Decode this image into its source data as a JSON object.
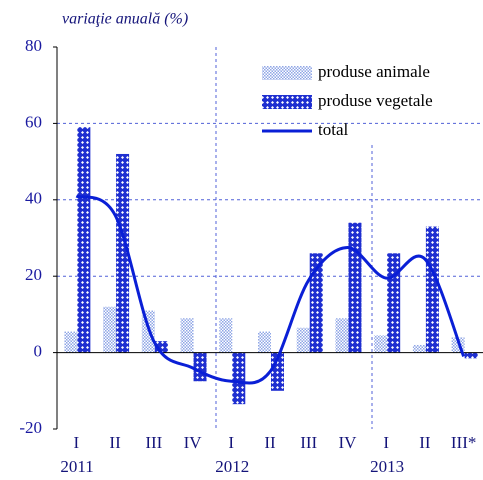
{
  "chart_data": {
    "type": "bar_line",
    "y_axis_label": "variaţie anuală (%)",
    "categories": [
      "I",
      "II",
      "III",
      "IV",
      "I",
      "II",
      "III",
      "IV",
      "I",
      "II",
      "III*"
    ],
    "year_labels": [
      "2011",
      null,
      null,
      null,
      "2012",
      null,
      null,
      null,
      "2013",
      null,
      null
    ],
    "series": [
      {
        "name": "produse animale",
        "kind": "bar",
        "pattern": "dots",
        "color": "#8fa6e6",
        "values": [
          5.5,
          12,
          11,
          9,
          9,
          5.5,
          6.5,
          9,
          4.5,
          2,
          4
        ]
      },
      {
        "name": "produse vegetale",
        "kind": "bar",
        "pattern": "crosshatch",
        "color": "#1f2fd0",
        "values": [
          59,
          52,
          3,
          -7.5,
          -13.5,
          -10,
          26,
          34,
          26,
          33,
          -1.5
        ]
      },
      {
        "name": "total",
        "kind": "line",
        "smooth": true,
        "color": "#0a1fd6",
        "values": [
          41,
          36,
          3,
          -4,
          -7.5,
          -5,
          19,
          27.5,
          19.5,
          24.5,
          -1
        ]
      }
    ],
    "ylim": [
      -20,
      80
    ],
    "yticks": [
      -20,
      0,
      20,
      40,
      60,
      80
    ],
    "grid": true,
    "legend": "upper right"
  }
}
